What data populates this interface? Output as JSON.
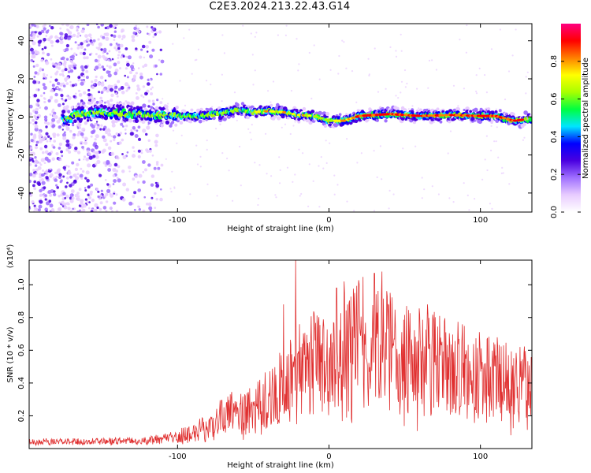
{
  "title": "C2E3.2024.213.22.43.G14",
  "chart_data": [
    {
      "type": "heatmap",
      "xlabel": "Height of straight line (km)",
      "ylabel": "Frequency (Hz)",
      "xlim": [
        -198,
        134
      ],
      "ylim": [
        -50,
        49
      ],
      "xticks": [
        -100,
        0,
        100
      ],
      "xtick_labels": [
        "-100",
        "0",
        "100"
      ],
      "yticks": [
        -40,
        -20,
        0,
        20,
        40
      ],
      "ytick_labels": [
        "-40",
        "-20",
        "0",
        "20",
        "40"
      ],
      "colorbar": {
        "label": "Normalized spectral amplitude",
        "range": [
          0,
          1
        ],
        "ticks": [
          0.0,
          0.2,
          0.4,
          0.6,
          0.8
        ],
        "tick_labels": [
          "0.0",
          "0.2",
          "0.4",
          "0.6",
          "0.8"
        ],
        "colors": [
          "#ffffff",
          "#e8ccff",
          "#a070ff",
          "#4a00e0",
          "#0000ff",
          "#00e5ff",
          "#00ff40",
          "#a8ff00",
          "#ffff00",
          "#ff8000",
          "#ff0000",
          "#ff0080"
        ]
      },
      "ridge_center_hz": [
        [
          -170,
          1.0
        ],
        [
          -150,
          2.5
        ],
        [
          -130,
          1.5
        ],
        [
          -110,
          1.0
        ],
        [
          -90,
          0.0
        ],
        [
          -70,
          2.0
        ],
        [
          -60,
          4.0
        ],
        [
          -50,
          2.5
        ],
        [
          -40,
          3.0
        ],
        [
          -30,
          2.5
        ],
        [
          -20,
          1.0
        ],
        [
          -10,
          0.5
        ],
        [
          0,
          -2.0
        ],
        [
          10,
          -2.0
        ],
        [
          20,
          0.5
        ],
        [
          40,
          1.5
        ],
        [
          60,
          0.5
        ],
        [
          80,
          1.0
        ],
        [
          100,
          0.5
        ],
        [
          110,
          0.5
        ],
        [
          122,
          -2.0
        ],
        [
          134,
          -1.0
        ]
      ],
      "background_noise_range_km": [
        -198,
        -110
      ]
    },
    {
      "type": "line",
      "xlabel": "Height of straight line (km)",
      "ylabel": "SNR (10 * v/v)",
      "y_multiplier": "(x10⁴)",
      "xlim": [
        -198,
        134
      ],
      "ylim": [
        0,
        1.15
      ],
      "xticks": [
        -100,
        0,
        100
      ],
      "xtick_labels": [
        "-100",
        "0",
        "100"
      ],
      "yticks": [
        0.2,
        0.4,
        0.6,
        0.8,
        1.0
      ],
      "ytick_labels": [
        "0.2",
        "0.4",
        "0.6",
        "0.8",
        "1.0"
      ],
      "color": "#e03030",
      "envelope": [
        [
          -198,
          0.05
        ],
        [
          -160,
          0.05
        ],
        [
          -120,
          0.06
        ],
        [
          -105,
          0.08
        ],
        [
          -90,
          0.12
        ],
        [
          -80,
          0.18
        ],
        [
          -70,
          0.25
        ],
        [
          -60,
          0.3
        ],
        [
          -50,
          0.3
        ],
        [
          -35,
          0.45
        ],
        [
          -25,
          0.55
        ],
        [
          -15,
          0.7
        ],
        [
          0,
          0.65
        ],
        [
          10,
          0.8
        ],
        [
          20,
          0.85
        ],
        [
          35,
          0.8
        ],
        [
          50,
          0.7
        ],
        [
          70,
          0.68
        ],
        [
          90,
          0.6
        ],
        [
          110,
          0.55
        ],
        [
          134,
          0.5
        ]
      ],
      "spikes": [
        [
          -22,
          1.15
        ],
        [
          -30,
          0.88
        ],
        [
          5,
          0.98
        ],
        [
          10,
          1.02
        ],
        [
          30,
          1.07
        ],
        [
          35,
          1.08
        ],
        [
          17,
          0.95
        ],
        [
          60,
          0.82
        ],
        [
          65,
          0.88
        ]
      ]
    }
  ]
}
